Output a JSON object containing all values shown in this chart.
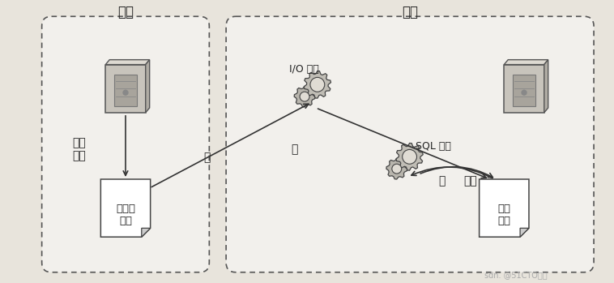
{
  "title_master": "主库",
  "title_slave": "备库",
  "label_data_change": "数据\n更改",
  "label_binlog": "二进制\n日志",
  "label_relay_log": "中继\n日志",
  "label_io_thread": "I/O 线程",
  "label_sql_thread": "SQL 线程",
  "label_read": "读",
  "label_write": "写",
  "label_read2": "读",
  "label_replay": "重放",
  "bg_color": "#e8e4dc",
  "inner_bg": "#f5f3ef",
  "box_fill": "#f0eeea",
  "border_color": "#555555",
  "text_color": "#222222",
  "arrow_color": "#333333",
  "watermark": "sdn. @51CTO博客"
}
